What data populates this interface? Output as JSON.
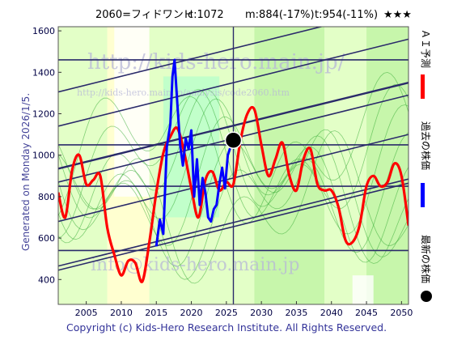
{
  "header": {
    "code_name": "2060=フィドワンＨ",
    "current": "c:1072",
    "median": "m:884(-17%)",
    "target": "t:954(-11%)",
    "rating": "★★★"
  },
  "watermarks": {
    "top": "http://kids-hero.main.jp/",
    "top_small": "http://kids-hero.main.jp/analysis/code2060.htm",
    "bottom": "info@kids-hero.main.jp"
  },
  "generated_label": "Generated on Monday 2026/1/5.",
  "copyright": "Copyright (c) Kids-Hero Research Institute. All Rights Reserved.",
  "legend": {
    "ai_forecast": "ＡＩ予測",
    "past_price": "過去の株価",
    "latest_price": "最新の株価"
  },
  "colors": {
    "ai_forecast": "#ff0000",
    "past_price": "#0000ff",
    "latest_price": "#000000",
    "channel_lines": "#2a2a6a",
    "band_light": "#ccff99",
    "band_mid": "#99ee66",
    "band_teal": "#aaffcc",
    "band_yellow": "#ffffaa",
    "band_green_lines": "#33aa33",
    "title_text": "#000000",
    "axis_text": "#000044",
    "generated_text": "#444499",
    "copyright_text": "#333399"
  },
  "chart_data": {
    "type": "line",
    "x_ticks": [
      2005,
      2010,
      2015,
      2020,
      2025,
      2030,
      2035,
      2040,
      2045,
      2050
    ],
    "y_ticks": [
      400,
      600,
      800,
      1000,
      1200,
      1400,
      1600
    ],
    "xlim": [
      2001,
      2051
    ],
    "ylim": [
      280,
      1620
    ],
    "grid": false,
    "legend_position": "right",
    "series": [
      {
        "name": "ＡＩ予測",
        "x": [
          2001,
          2002,
          2003,
          2004,
          2005,
          2006,
          2007,
          2008,
          2009,
          2010,
          2011,
          2012,
          2013,
          2014,
          2015,
          2016,
          2017,
          2018,
          2019,
          2020,
          2021,
          2022,
          2023,
          2024,
          2025,
          2026,
          2027,
          2028,
          2029,
          2030,
          2031,
          2032,
          2033,
          2034,
          2035,
          2036,
          2037,
          2038,
          2039,
          2040,
          2041,
          2042,
          2043,
          2044,
          2045,
          2046,
          2047,
          2048,
          2049,
          2050,
          2051
        ],
        "y": [
          820,
          700,
          930,
          1000,
          860,
          880,
          900,
          650,
          520,
          420,
          490,
          480,
          390,
          580,
          820,
          1010,
          1090,
          1130,
          1010,
          840,
          700,
          880,
          920,
          830,
          870,
          860,
          1070,
          1200,
          1220,
          1050,
          900,
          980,
          1060,
          900,
          830,
          980,
          1030,
          860,
          830,
          830,
          750,
          590,
          580,
          660,
          850,
          900,
          850,
          870,
          960,
          900,
          660
        ]
      },
      {
        "name": "過去の株価",
        "x": [
          2015,
          2015.5,
          2016,
          2016.5,
          2017,
          2017.3,
          2017.6,
          2018,
          2018.4,
          2018.8,
          2019.2,
          2019.6,
          2020,
          2020.4,
          2020.8,
          2021.2,
          2021.6,
          2022,
          2022.4,
          2022.8,
          2023.2,
          2023.6,
          2024,
          2024.4,
          2024.8,
          2025.2,
          2025.6,
          2026
        ],
        "y": [
          560,
          690,
          620,
          1040,
          1150,
          1380,
          1460,
          1250,
          1050,
          950,
          1080,
          1030,
          1120,
          800,
          980,
          760,
          890,
          820,
          700,
          680,
          740,
          760,
          860,
          940,
          840,
          1000,
          1040,
          1080
        ]
      }
    ],
    "latest_point": {
      "x": 2026,
      "y": 1072
    },
    "channel_lines": [
      {
        "x": [
          2001,
          2051
        ],
        "y": [
          1305,
          1725
        ]
      },
      {
        "x": [
          2001,
          2051
        ],
        "y": [
          1140,
          1560
        ]
      },
      {
        "x": [
          2001,
          2051
        ],
        "y": [
          935,
          1350
        ]
      },
      {
        "x": [
          2001,
          2051
        ],
        "y": [
          870,
          1290
        ]
      },
      {
        "x": [
          2001,
          2051
        ],
        "y": [
          680,
          1100
        ]
      },
      {
        "x": [
          2001,
          2051
        ],
        "y": [
          465,
          885
        ]
      },
      {
        "x": [
          2001,
          2051
        ],
        "y": [
          445,
          865
        ]
      }
    ],
    "horizontal_lines": [
      1460,
      1050,
      850,
      540
    ],
    "vertical_line": 2026
  }
}
